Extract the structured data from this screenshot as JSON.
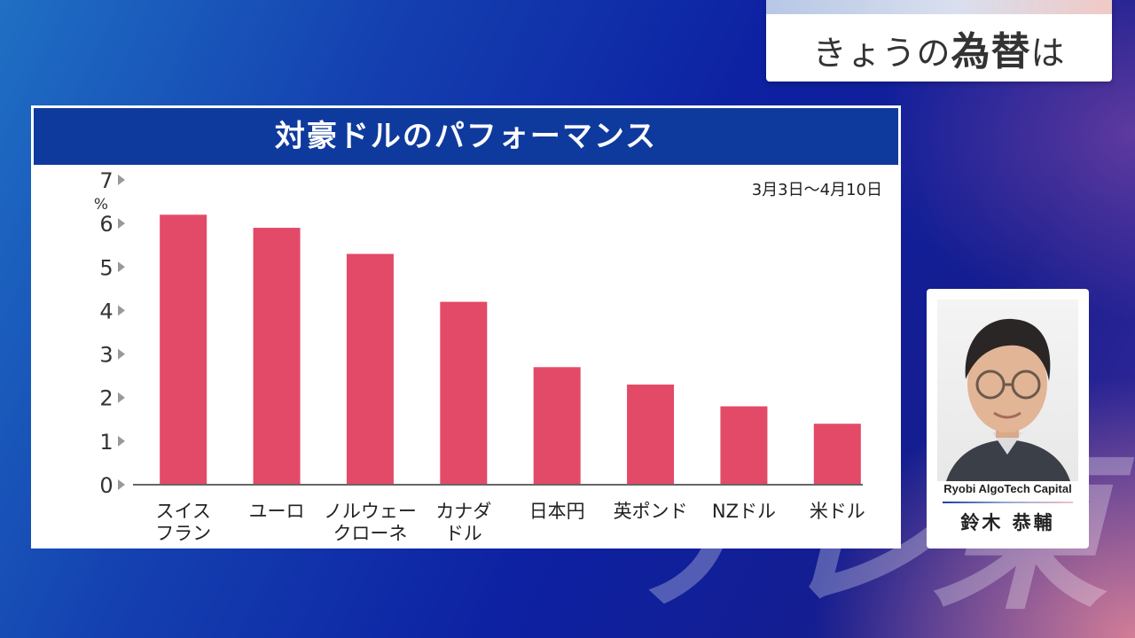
{
  "topic": {
    "prefix": "きょうの",
    "main": "為替",
    "suffix": "は"
  },
  "panel": {
    "title": "対豪ドルのパフォーマンス",
    "date_range": "3月3日〜4月10日"
  },
  "chart_data": {
    "type": "bar",
    "title": "対豪ドルのパフォーマンス",
    "unit": "%",
    "categories": [
      [
        "スイス",
        "フラン"
      ],
      [
        "ユーロ"
      ],
      [
        "ノルウェー",
        "クローネ"
      ],
      [
        "カナダ",
        "ドル"
      ],
      [
        "日本円"
      ],
      [
        "英ポンド"
      ],
      [
        "NZドル"
      ],
      [
        "米ドル"
      ]
    ],
    "values": [
      6.2,
      5.9,
      5.3,
      4.2,
      2.7,
      2.3,
      1.8,
      1.4
    ],
    "yticks": [
      "0",
      "1",
      "2",
      "3",
      "4",
      "5",
      "6",
      "7"
    ],
    "ylim": [
      0,
      7
    ],
    "grid": false,
    "bar_color": "#e34a68",
    "axis_color": "#666666"
  },
  "guest": {
    "company": "Ryobi AlgoTech Capital",
    "name": "鈴木 恭輔"
  },
  "watermark": "テレ東"
}
